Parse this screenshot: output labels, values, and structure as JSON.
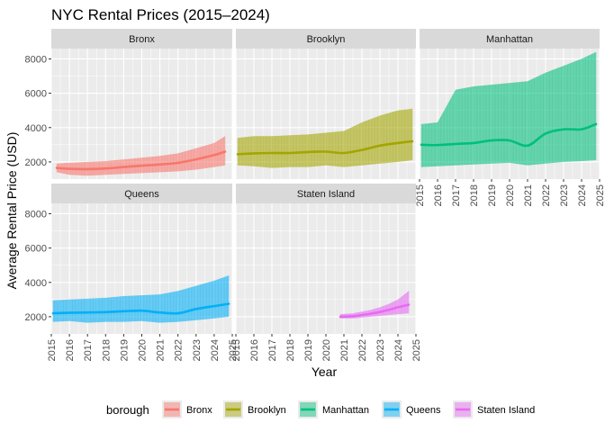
{
  "chart_data": {
    "type": "area",
    "title": "NYC Rental Prices (2015–2024)",
    "xlabel": "Year",
    "ylabel": "Average Rental Price (USD)",
    "xlim": [
      2015,
      2025
    ],
    "ylim": [
      1000,
      8600
    ],
    "x_ticks": [
      "2015",
      "2016",
      "2017",
      "2018",
      "2019",
      "2020",
      "2021",
      "2022",
      "2023",
      "2024",
      "2025"
    ],
    "y_ticks": [
      "2000",
      "4000",
      "6000",
      "8000"
    ],
    "grid": true,
    "facet_by": "borough",
    "legend": {
      "title": "borough",
      "position": "bottom",
      "entries": [
        "Bronx",
        "Brooklyn",
        "Manhattan",
        "Queens",
        "Staten Island"
      ]
    },
    "series": [
      {
        "name": "Bronx",
        "color": "#F8766D",
        "x": [
          2015.3,
          2016,
          2017,
          2018,
          2019,
          2020,
          2021,
          2022,
          2023,
          2024,
          2024.6
        ],
        "trend": [
          1650,
          1600,
          1580,
          1620,
          1700,
          1780,
          1850,
          1950,
          2150,
          2400,
          2600
        ],
        "low": [
          1400,
          1250,
          1200,
          1250,
          1300,
          1350,
          1400,
          1450,
          1550,
          1700,
          1800
        ],
        "high": [
          1900,
          1950,
          2000,
          2050,
          2150,
          2250,
          2350,
          2500,
          2800,
          3100,
          3500
        ]
      },
      {
        "name": "Brooklyn",
        "color": "#A3A500",
        "x": [
          2015.1,
          2016,
          2017,
          2018,
          2019,
          2020,
          2021,
          2022,
          2023,
          2024,
          2024.8
        ],
        "trend": [
          2450,
          2500,
          2520,
          2520,
          2580,
          2600,
          2520,
          2700,
          2950,
          3100,
          3200
        ],
        "low": [
          1800,
          1750,
          1650,
          1700,
          1700,
          1800,
          1700,
          1800,
          1900,
          2000,
          2100
        ],
        "high": [
          3400,
          3500,
          3500,
          3550,
          3600,
          3700,
          3800,
          4300,
          4700,
          5000,
          5100
        ]
      },
      {
        "name": "Manhattan",
        "color": "#00BF7D",
        "x": [
          2015.1,
          2016,
          2017,
          2018,
          2019,
          2020,
          2021,
          2022,
          2023,
          2024,
          2024.8
        ],
        "trend": [
          3000,
          2980,
          3050,
          3100,
          3250,
          3250,
          2950,
          3650,
          3900,
          3900,
          4200
        ],
        "low": [
          1700,
          1750,
          1800,
          1850,
          1900,
          1950,
          1800,
          1900,
          2000,
          2050,
          2100
        ],
        "high": [
          4200,
          4300,
          6200,
          6400,
          6500,
          6600,
          6700,
          7200,
          7600,
          8000,
          8400
        ]
      },
      {
        "name": "Queens",
        "color": "#00B0F6",
        "x": [
          2015.1,
          2016,
          2017,
          2018,
          2019,
          2020,
          2021,
          2022,
          2023,
          2024,
          2024.8
        ],
        "trend": [
          2200,
          2230,
          2250,
          2270,
          2320,
          2350,
          2250,
          2200,
          2450,
          2620,
          2750
        ],
        "low": [
          1700,
          1750,
          1650,
          1700,
          1700,
          1750,
          1650,
          1700,
          1800,
          1900,
          2000
        ],
        "high": [
          2950,
          3000,
          3050,
          3100,
          3200,
          3250,
          3300,
          3500,
          3800,
          4100,
          4400
        ]
      },
      {
        "name": "Staten Island",
        "color": "#E76BF3",
        "x": [
          2020.8,
          2021.5,
          2022,
          2022.5,
          2023,
          2023.5,
          2024,
          2024.6
        ],
        "trend": [
          2000,
          2030,
          2100,
          2180,
          2280,
          2400,
          2550,
          2700
        ],
        "low": [
          1900,
          1900,
          1950,
          2000,
          2050,
          2100,
          2150,
          2200
        ],
        "high": [
          2150,
          2200,
          2300,
          2400,
          2550,
          2750,
          3000,
          3500
        ]
      }
    ]
  }
}
